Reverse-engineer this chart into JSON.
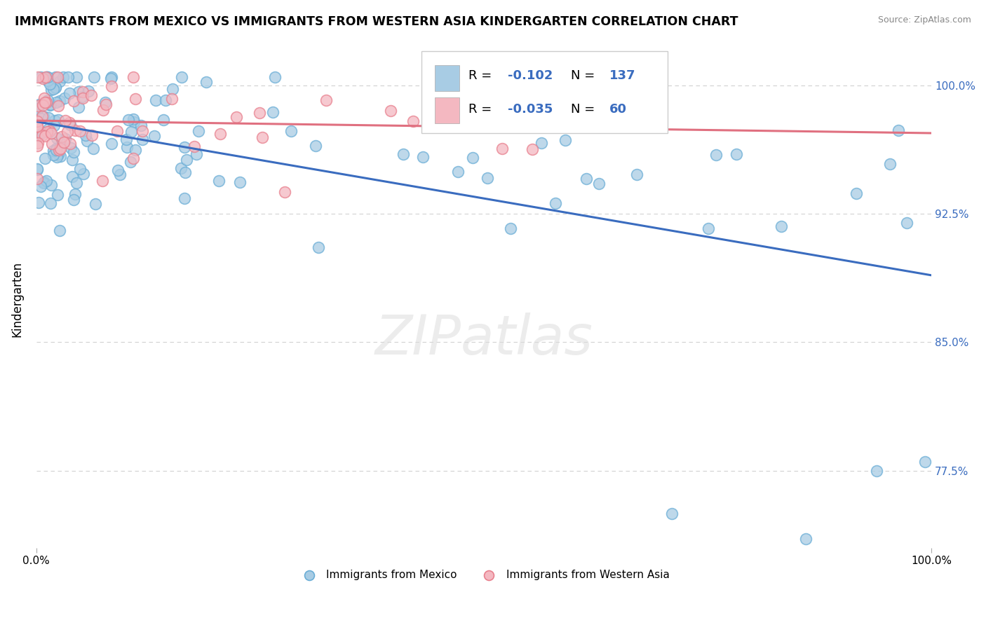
{
  "title": "IMMIGRANTS FROM MEXICO VS IMMIGRANTS FROM WESTERN ASIA KINDERGARTEN CORRELATION CHART",
  "source": "Source: ZipAtlas.com",
  "ylabel": "Kindergarten",
  "legend_label1": "Immigrants from Mexico",
  "legend_label2": "Immigrants from Western Asia",
  "legend_r1_val": "-0.102",
  "legend_n1_val": "137",
  "legend_r2_val": "-0.035",
  "legend_n2_val": "60",
  "color_blue": "#a8cce4",
  "color_blue_edge": "#6baed6",
  "color_pink": "#f4b8c1",
  "color_pink_edge": "#e8808e",
  "line_blue": "#3a6cbf",
  "line_pink": "#e07080",
  "bg_color": "#ffffff",
  "grid_color": "#cccccc",
  "yticks": [
    100.0,
    92.5,
    85.0,
    77.5
  ],
  "ytick_labels": [
    "100.0%",
    "92.5%",
    "85.0%",
    "77.5%"
  ],
  "xlim": [
    0,
    100
  ],
  "ylim": [
    73.0,
    102.0
  ]
}
